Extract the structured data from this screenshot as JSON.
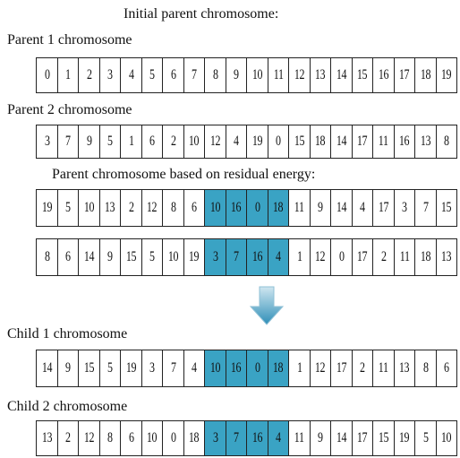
{
  "title": "Initial parent chromosome:",
  "rows": [
    {
      "label": "Parent 1 chromosome",
      "cells": [
        0,
        1,
        2,
        3,
        4,
        5,
        6,
        7,
        8,
        9,
        10,
        11,
        12,
        13,
        14,
        15,
        16,
        17,
        18,
        19
      ]
    },
    {
      "label": "Parent 2 chromosome",
      "cells": [
        3,
        7,
        9,
        5,
        1,
        6,
        2,
        10,
        12,
        4,
        19,
        0,
        15,
        18,
        14,
        17,
        11,
        16,
        13,
        8
      ]
    },
    {
      "label": "Parent chromosome based on residual energy:",
      "cells": [
        19,
        5,
        10,
        13,
        2,
        12,
        8,
        6,
        10,
        16,
        0,
        18,
        11,
        9,
        14,
        4,
        17,
        3,
        7,
        15
      ],
      "highlight": [
        8,
        9,
        10,
        11
      ]
    },
    {
      "cells": [
        8,
        6,
        14,
        9,
        15,
        5,
        10,
        19,
        3,
        7,
        16,
        4,
        1,
        12,
        0,
        17,
        2,
        11,
        18,
        13
      ],
      "highlight": [
        8,
        9,
        10,
        11
      ]
    },
    {
      "label": "Child 1 chromosome",
      "cells": [
        14,
        9,
        15,
        5,
        19,
        3,
        7,
        4,
        10,
        16,
        0,
        18,
        1,
        12,
        17,
        2,
        11,
        13,
        8,
        6
      ],
      "highlight": [
        8,
        9,
        10,
        11
      ]
    },
    {
      "label": "Child 2 chromosome",
      "cells": [
        13,
        2,
        12,
        8,
        6,
        10,
        0,
        18,
        3,
        7,
        16,
        4,
        11,
        9,
        14,
        17,
        15,
        19,
        5,
        10
      ],
      "highlight": [
        8,
        9,
        10,
        11
      ]
    }
  ]
}
